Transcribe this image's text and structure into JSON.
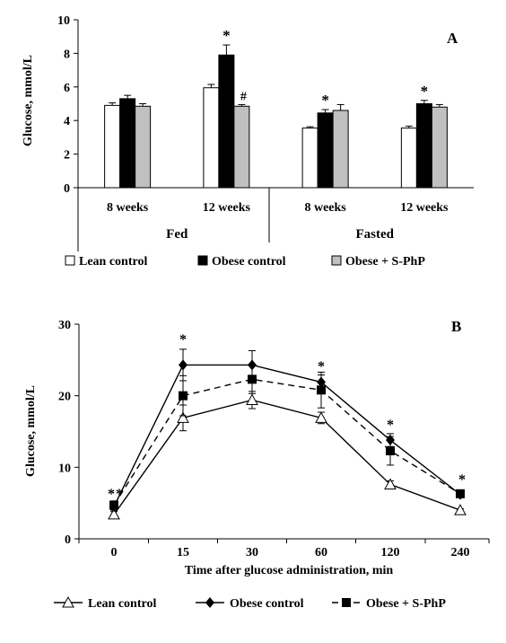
{
  "chart_data": [
    {
      "type": "bar",
      "panel_label": "A",
      "ylabel": "Glucose, mmol/L",
      "ylim": [
        0,
        10
      ],
      "yticks": [
        "0",
        "2",
        "4",
        "6",
        "8",
        "10"
      ],
      "groups": [
        {
          "label": "Fed",
          "categories": [
            "8 weeks",
            "12 weeks"
          ]
        },
        {
          "label": "Fasted",
          "categories": [
            "8 weeks",
            "12 weeks"
          ]
        }
      ],
      "series": [
        {
          "name": "Lean control",
          "color": "#ffffff",
          "values": [
            4.9,
            5.95,
            3.55,
            3.55
          ],
          "errors": [
            0.15,
            0.2,
            0.08,
            0.12
          ]
        },
        {
          "name": "Obese control",
          "color": "#000000",
          "values": [
            5.3,
            7.9,
            4.45,
            5.0
          ],
          "errors": [
            0.2,
            0.6,
            0.2,
            0.2
          ]
        },
        {
          "name": "Obese + S-PhP",
          "color": "#c0c0c0",
          "values": [
            4.85,
            4.85,
            4.6,
            4.8
          ],
          "errors": [
            0.15,
            0.1,
            0.35,
            0.15
          ]
        }
      ],
      "annotations": [
        {
          "category_index": 1,
          "series_index": 1,
          "text": "*"
        },
        {
          "category_index": 1,
          "series_index": 2,
          "text": "#"
        },
        {
          "category_index": 2,
          "series_index": 1,
          "text": "*"
        },
        {
          "category_index": 3,
          "series_index": 1,
          "text": "*"
        }
      ],
      "legend": "bottom"
    },
    {
      "type": "line",
      "panel_label": "B",
      "ylabel": "Glucose, mmol/L",
      "xlabel": "Time after glucose administration,  min",
      "ylim": [
        0,
        30
      ],
      "yticks": [
        "0",
        "10",
        "20",
        "30"
      ],
      "categories": [
        "0",
        "15",
        "30",
        "60",
        "120",
        "240"
      ],
      "series": [
        {
          "name": "Lean control",
          "marker": "triangle-open",
          "dash": "solid",
          "values": [
            3.4,
            16.9,
            19.4,
            16.9,
            7.6,
            4.0
          ],
          "errors": [
            0.4,
            1.8,
            1.2,
            0.8,
            0.5,
            0.2
          ]
        },
        {
          "name": "Obese control",
          "marker": "diamond",
          "dash": "solid",
          "values": [
            4.5,
            24.3,
            24.3,
            21.9,
            13.8,
            6.2
          ],
          "errors": [
            0.5,
            2.2,
            2.0,
            1.0,
            0.9,
            0.4
          ]
        },
        {
          "name": "Obese + S-PhP",
          "marker": "square",
          "dash": "dashed",
          "values": [
            4.7,
            20.0,
            22.3,
            20.8,
            12.3,
            6.3
          ],
          "errors": [
            0.6,
            2.8,
            2.0,
            2.5,
            2.0,
            0.5
          ]
        }
      ],
      "annotations": [
        {
          "category_index": 0,
          "text": "*"
        },
        {
          "category_index": 0,
          "text": "*"
        },
        {
          "category_index": 1,
          "text": "*"
        },
        {
          "category_index": 3,
          "text": "*"
        },
        {
          "category_index": 4,
          "text": "*"
        },
        {
          "category_index": 5,
          "text": "*"
        }
      ],
      "legend": "bottom"
    }
  ]
}
